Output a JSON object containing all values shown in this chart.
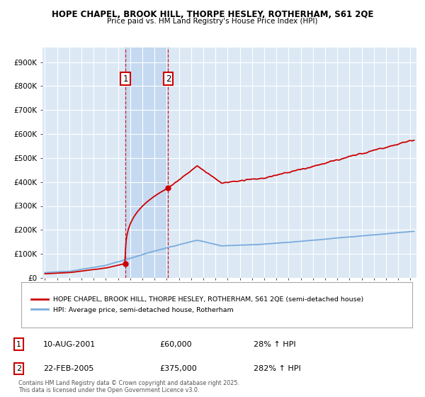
{
  "title": "HOPE CHAPEL, BROOK HILL, THORPE HESLEY, ROTHERHAM, S61 2QE",
  "subtitle": "Price paid vs. HM Land Registry's House Price Index (HPI)",
  "ytick_values": [
    0,
    100000,
    200000,
    300000,
    400000,
    500000,
    600000,
    700000,
    800000,
    900000
  ],
  "ylim": [
    0,
    960000
  ],
  "xlim_start": 1994.8,
  "xlim_end": 2025.5,
  "t1_year": 2001.6,
  "t1_price": 60000,
  "t2_year": 2005.12,
  "t2_price": 375000,
  "transaction1": {
    "label": "1",
    "text": "10-AUG-2001",
    "amount": "£60,000",
    "hpi": "28% ↑ HPI"
  },
  "transaction2": {
    "label": "2",
    "text": "22-FEB-2005",
    "amount": "£375,000",
    "hpi": "282% ↑ HPI"
  },
  "legend_entry1": "HOPE CHAPEL, BROOK HILL, THORPE HESLEY, ROTHERHAM, S61 2QE (semi-detached house)",
  "legend_entry2": "HPI: Average price, semi-detached house, Rotherham",
  "footer": "Contains HM Land Registry data © Crown copyright and database right 2025.\nThis data is licensed under the Open Government Licence v3.0.",
  "property_color": "#cc0000",
  "hpi_color": "#7aabdc",
  "background_plot": "#dce9f5",
  "background_fig": "#ffffff",
  "grid_color": "#ffffff",
  "vline_color": "#cc0000",
  "band_color": "#c5d9f0"
}
